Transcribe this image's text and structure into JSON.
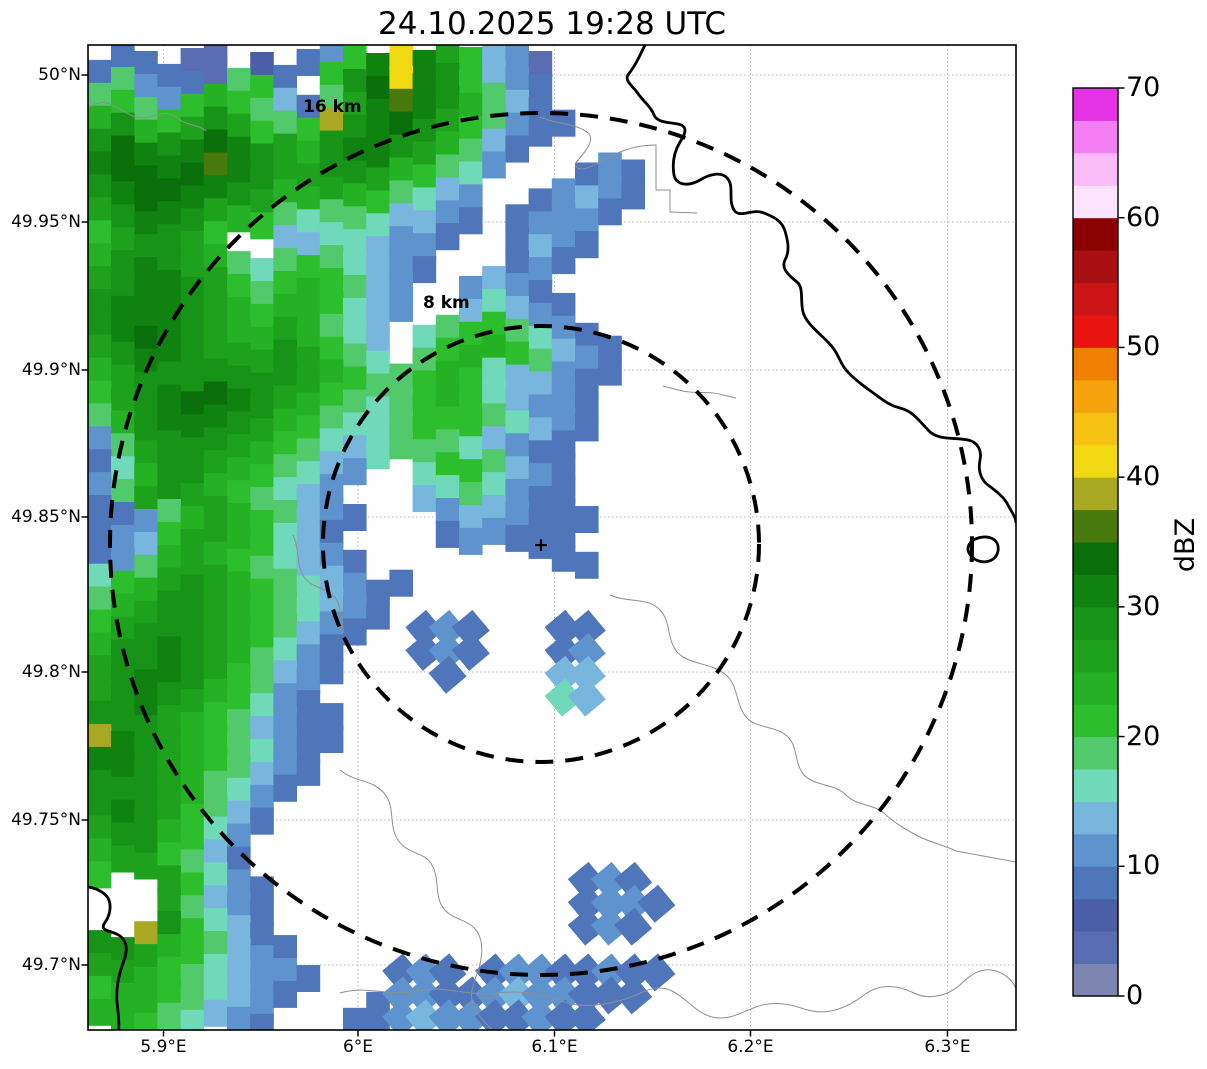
{
  "chart_data": {
    "type": "heatmap",
    "title": "24.10.2025 19:28 UTC",
    "xlabel": "",
    "ylabel": "",
    "x_ticks": [
      "5.9°E",
      "6°E",
      "6.1°E",
      "6.2°E",
      "6.3°E"
    ],
    "y_ticks": [
      "50°N",
      "49.95°N",
      "49.9°N",
      "49.85°N",
      "49.8°N",
      "49.75°N",
      "49.7°N"
    ],
    "grid_on": true,
    "legend_position": "right-colorbar",
    "colorbar": {
      "label": "dBZ",
      "ticks": [
        0,
        10,
        20,
        30,
        40,
        50,
        60,
        70
      ],
      "min": 0,
      "max": 70,
      "bin_size": 2.5,
      "colors_bottom_to_top": [
        "#7d86b0",
        "#5a6cb2",
        "#4a5fa8",
        "#4f75bb",
        "#5e93cd",
        "#79b6de",
        "#6fd9ba",
        "#52c96a",
        "#2cbe2c",
        "#24b124",
        "#1ea21e",
        "#179317",
        "#0f8210",
        "#0a6e0a",
        "#47790d",
        "#a8a823",
        "#f0d812",
        "#f5c213",
        "#f5a20d",
        "#f08000",
        "#e8140f",
        "#cb1517",
        "#a81013",
        "#8b0000",
        "#fce4fc",
        "#f9bcf9",
        "#f47ef4",
        "#e433e4"
      ]
    },
    "range_rings": [
      {
        "label": "8 km",
        "radius_km": 8
      },
      {
        "label": "16 km",
        "radius_km": 16
      }
    ],
    "center_marker": "+",
    "reflectivity_grid": {
      "cols": 40,
      "rows": 43,
      "encoding": "one char per map cell, row-major from map top-left; '.' = no echo; chars 1-9,a-h = dBZ bins of 2.5 width starting at 0 ([0,2.5)='1' ... [40,42.5)='h')",
      "cells": [
        ".44.22.3.459dhdb9652....................",
        "485442894.9cehdc9654....................",
        "89859a98648bdfdca864....................",
        "aca9bcb989gcdecb98544...................",
        "cedcdedcbacddcba864.....................",
        "deedefdcbbccba9875...454................",
        "cdeeddcbaaba98765..45654................",
        "bcddcba9878876654.45554.................",
        "9bccb9..66776554..4654..................",
        "acdcba878987654...454...................",
        "bcddcb989a9865..5654....................",
        "cdddcba9aa9765..67654...................",
        "cdedcbaaba876.78998754..................",
        "bcddcbbbcb987.89aa98654.................",
        "abcccccccba9889a9766544.................",
        "9bcdeedcba98789a976554..................",
        "8acdddcba9877899987654..................",
        "58bcccba9876788876544...................",
        "47accba98765..7998654...................",
        "58bcba98765...6787544...................",
        "4458aba98654...5665444..................",
        "4569bba9764....455444...................",
        "458aba987654........44..................",
        "79abcba9876544..........................",
        "8abccba987654...........................",
        "9bcccba98654..454...44..................",
        "accdcba8754...454...45..................",
        "bcddcb98654....4....66..................",
        "bcdcba9754..........76..................",
        "cccba986544.............................",
        "gdcba987544.............................",
        "ddcba98654..............................",
        "cccba8754...............................",
        "cdcb9864................................",
        "bcca975.................................",
        "abb9864.................................",
        "9..b9754.............454................",
        "...b8654.............4554...............",
        "..gc9764.............454................",
        "ccba98654...............................",
        "bba9876554...454.45544544...............",
        "9aa987654...455445655444................",
        "aa987654...44565544544.................."
      ]
    }
  }
}
